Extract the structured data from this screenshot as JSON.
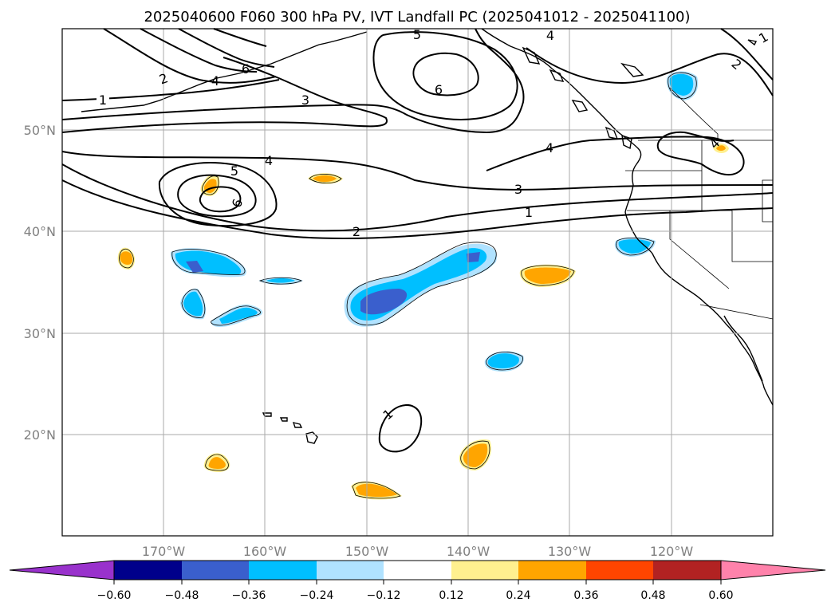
{
  "title": "2025040600 F060 300 hPa PV, IVT Landfall PC (2025041012 - 2025041100)",
  "map": {
    "lon_range": [
      -180,
      -110
    ],
    "lat_range": [
      10,
      60
    ],
    "gridlines": true,
    "lat_ticks": [
      {
        "value": 50,
        "label": "50°N"
      },
      {
        "value": 40,
        "label": "40°N"
      },
      {
        "value": 30,
        "label": "30°N"
      },
      {
        "value": 20,
        "label": "20°N"
      }
    ],
    "lon_ticks": [
      {
        "value": -170,
        "label": "170°W"
      },
      {
        "value": -160,
        "label": "160°W"
      },
      {
        "value": -150,
        "label": "150°W"
      },
      {
        "value": -140,
        "label": "140°W"
      },
      {
        "value": -130,
        "label": "130°W"
      },
      {
        "value": -120,
        "label": "120°W"
      }
    ],
    "contour_labels": [
      "1",
      "2",
      "3",
      "4",
      "5",
      "6"
    ]
  },
  "colorbar": {
    "extend": "both",
    "colors": [
      "#9932cc",
      "#00008b",
      "#3a5fcd",
      "#00bfff",
      "#b0e2ff",
      "#ffffff",
      "#fff08f",
      "#ffa500",
      "#ff4500",
      "#b22222",
      "#ff82ab"
    ],
    "tick_labels": [
      "−0.60",
      "−0.48",
      "−0.36",
      "−0.24",
      "−0.12",
      "0.12",
      "0.24",
      "0.36",
      "0.48",
      "0.60"
    ]
  }
}
